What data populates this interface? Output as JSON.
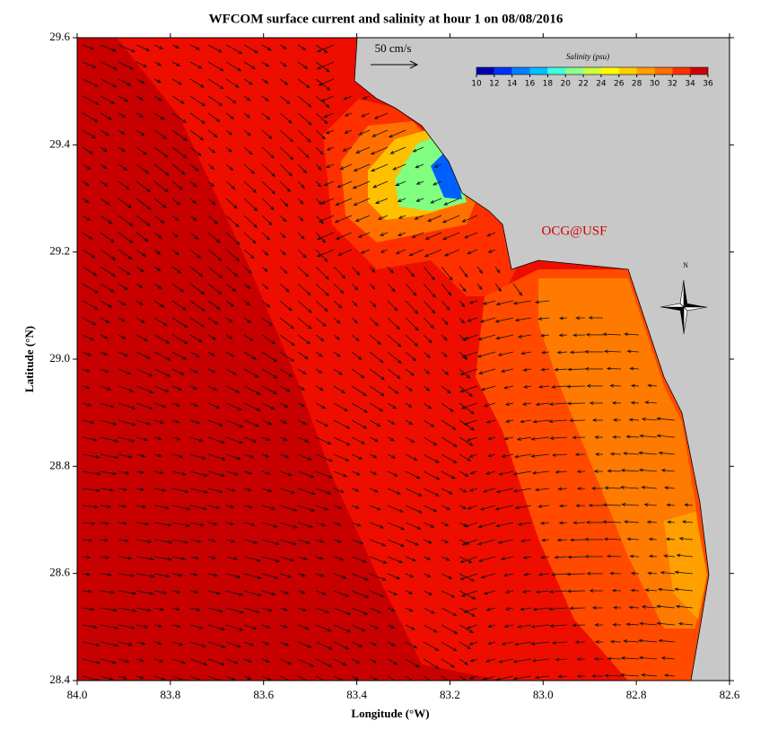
{
  "chart_data": {
    "type": "map",
    "title": "WFCOM surface current and salinity at hour 1 on 08/08/2016",
    "x_label": "Longitude (°W)",
    "y_label": "Latitude (°N)",
    "xlim": [
      84.0,
      82.6
    ],
    "ylim": [
      28.4,
      29.6
    ],
    "xticks": [
      {
        "value": 84,
        "label": "84.0"
      },
      83.8,
      83.6,
      83.4,
      83.2,
      {
        "value": 83,
        "label": "83.0"
      },
      82.8,
      82.6
    ],
    "yticks": [
      28.4,
      28.6,
      28.8,
      {
        "value": 29,
        "label": "29.0"
      },
      29.2,
      29.4,
      29.6
    ],
    "colorbar": {
      "label": "Salinity (psu)",
      "ticks": [
        10,
        12,
        14,
        16,
        18,
        20,
        22,
        24,
        26,
        28,
        30,
        32,
        34,
        36
      ],
      "colors": [
        "#0000b0",
        "#0030ff",
        "#0080ff",
        "#00c0ff",
        "#40ffe0",
        "#90ff90",
        "#d0ff40",
        "#ffff00",
        "#ffd000",
        "#ffa000",
        "#ff7000",
        "#ff3000",
        "#d00000"
      ]
    },
    "scale_label": "50 cm/s",
    "credit": "OCG@USF",
    "compass_label": "N"
  }
}
